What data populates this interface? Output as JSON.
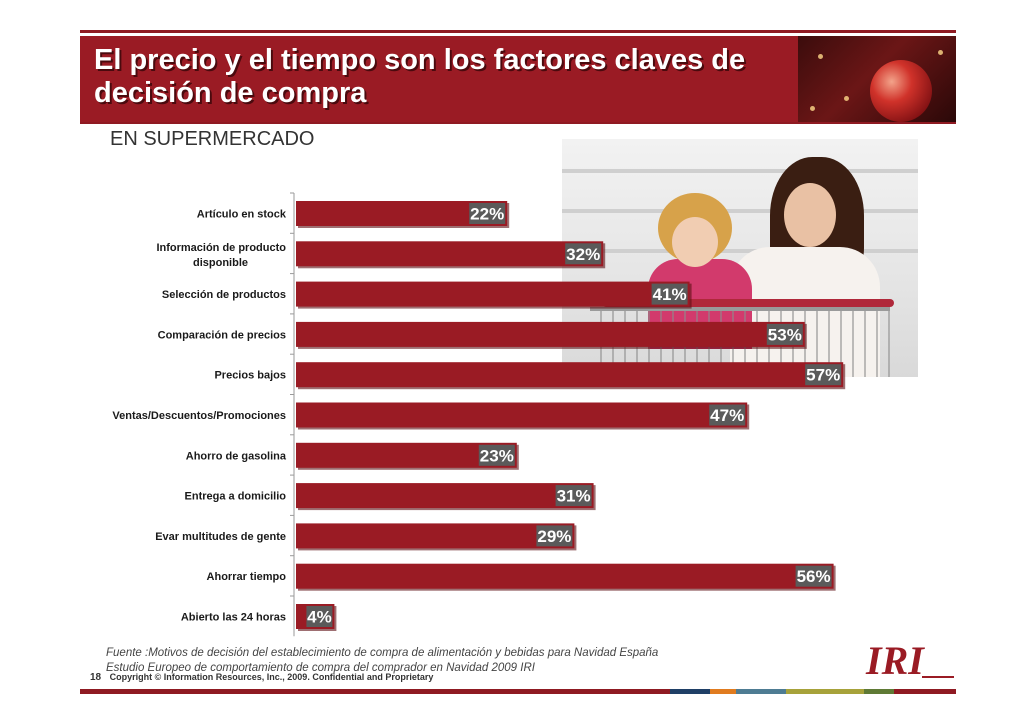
{
  "slide": {
    "title": "El precio y el tiempo son los factores claves de decisión de compra",
    "subtitle": "EN SUPERMERCADO",
    "source_line1": "Fuente :Motivos de decisión del establecimiento de compra de alimentación y bebidas para Navidad España",
    "source_line2": "Estudio Europeo de comportamiento de compra del comprador  en Navidad 2009 IRI",
    "page_number": "18",
    "copyright": "Copyright © Information Resources, Inc., 2009. Confidential and Proprietary",
    "logo_text": "IRI",
    "colors": {
      "bar": "#9a1b24",
      "label_box": "#5a5a5a",
      "accent": "#8f1a22"
    }
  },
  "chart_data": {
    "type": "bar",
    "orientation": "horizontal",
    "title": "EN SUPERMERCADO",
    "categories": [
      "Artículo en stock",
      "Información de producto disponible",
      "Selección de productos",
      "Comparación de precios",
      "Precios bajos",
      "Ventas/Descuentos/Promociones",
      "Ahorro de gasolina",
      "Entrega a domicilio",
      "Evar multitudes de gente",
      "Ahorrar tiempo",
      "Abierto las 24 horas"
    ],
    "values": [
      22,
      32,
      41,
      53,
      57,
      47,
      23,
      31,
      29,
      56,
      4
    ],
    "value_labels": [
      "22%",
      "32%",
      "41%",
      "53%",
      "57%",
      "47%",
      "23%",
      "31%",
      "29%",
      "56%",
      "4%"
    ],
    "xlim": [
      0,
      60
    ],
    "grid": false,
    "legend": "none"
  }
}
